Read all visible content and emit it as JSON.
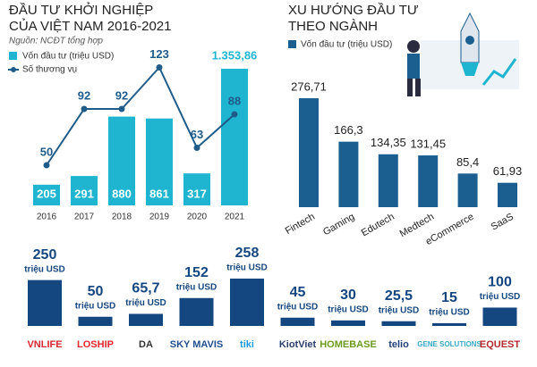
{
  "chart_data": [
    {
      "type": "combo",
      "title": [
        "ĐẦU TƯ KHỞI NGHIỆP",
        "CỦA VIỆT NAM 2016-2021"
      ],
      "source": "Nguồn: NCĐT tổng hợp",
      "categories": [
        "2016",
        "2017",
        "2018",
        "2019",
        "2020",
        "2021"
      ],
      "series": [
        {
          "name": "Vốn đầu tư (triệu USD)",
          "kind": "bar",
          "color": "#1fb5d0",
          "values": [
            205,
            291,
            880,
            861,
            317,
            1353.86
          ],
          "value_labels": [
            "205",
            "291",
            "880",
            "861",
            "317",
            "1.353,86"
          ]
        },
        {
          "name": "Số thương vụ",
          "kind": "line",
          "color": "#1f5c8a",
          "values": [
            50,
            92,
            92,
            123,
            63,
            88
          ]
        }
      ]
    },
    {
      "type": "bar",
      "title": [
        "XU HƯỚNG ĐẦU TƯ",
        "THEO NGÀNH"
      ],
      "categories": [
        "Fintech",
        "Gaming",
        "Edutech",
        "Medtech",
        "eCommerce",
        "SaaS"
      ],
      "series": [
        {
          "name": "Vốn đầu tư (triệu USD)",
          "color": "#1b5f90",
          "values": [
            276.71,
            166.3,
            134.35,
            131.45,
            85.4,
            61.93
          ],
          "value_labels": [
            "276,71",
            "166,3",
            "134,35",
            "131,45",
            "85,4",
            "61,93"
          ]
        }
      ]
    },
    {
      "type": "bar",
      "unit": "triệu USD",
      "categories": [
        "VNLIFE",
        "LOSHIP",
        "DA",
        "SKY MAVIS",
        "tiki",
        "KiotViet",
        "HOMEBASE",
        "telio",
        "GENE SOLUTIONS",
        "EQUEST"
      ],
      "label_colors": [
        "#d7262e",
        "#e0282e",
        "#333333",
        "#1f4f8f",
        "#1a9be0",
        "#2a3f6e",
        "#6a9a1e",
        "#1f3f7a",
        "#3aa7c9",
        "#b22a2e"
      ],
      "series": [
        {
          "color": "#14467f",
          "values": [
            250,
            50,
            65.7,
            152,
            258,
            45,
            30,
            25.5,
            15,
            100
          ],
          "value_labels": [
            "250",
            "50",
            "65,7",
            "152",
            "258",
            "45",
            "30",
            "25,5",
            "15",
            "100"
          ]
        }
      ]
    }
  ]
}
